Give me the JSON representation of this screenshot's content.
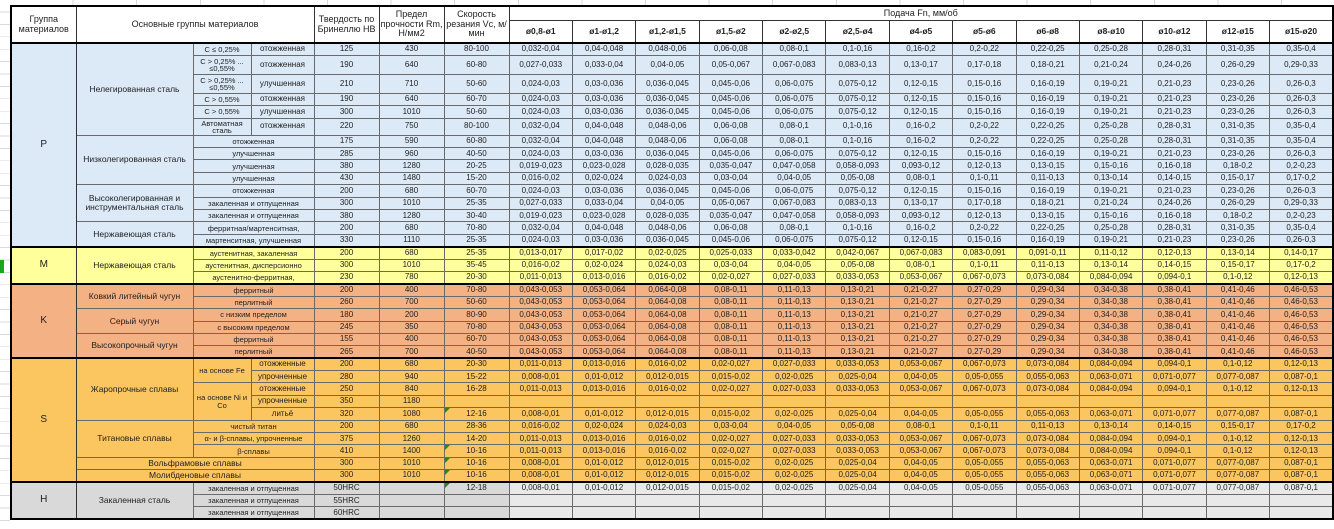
{
  "header": {
    "group": "Группа материалов",
    "main_groups": "Основные группы материалов",
    "hardness": "Твердость по Бринеллю HB",
    "strength": "Предел прочности Rm, Н/мм2",
    "speed": "Скорость резания Vc, м/мин",
    "feed": "Подача Fn, мм/об",
    "feed_columns": [
      "ø0,8-ø1",
      "ø1-ø1,2",
      "ø1,2-ø1,5",
      "ø1,5-ø2",
      "ø2-ø2,5",
      "ø2,5-ø4",
      "ø4-ø5",
      "ø5-ø6",
      "ø6-ø8",
      "ø8-ø10",
      "ø10-ø12",
      "ø12-ø15",
      "ø15-ø20"
    ]
  },
  "colors": {
    "P": "#dce9f7",
    "M": "#ffff9c",
    "K": "#f4b183",
    "S": "#fbc55f",
    "H": "#d9d9d9",
    "comment_marker": "#1e8c1e"
  },
  "feed_profiles": {
    "F0": [
      "",
      "",
      "",
      "",
      "",
      "",
      "",
      "",
      "",
      "",
      "",
      "",
      ""
    ],
    "F1": [
      "0,032-0,04",
      "0,04-0,048",
      "0,048-0,06",
      "0,06-0,08",
      "0,08-0,1",
      "0,1-0,16",
      "0,16-0,2",
      "0,2-0,22",
      "0,22-0,25",
      "0,25-0,28",
      "0,28-0,31",
      "0,31-0,35",
      "0,35-0,4"
    ],
    "F2": [
      "0,027-0,033",
      "0,033-0,04",
      "0,04-0,05",
      "0,05-0,067",
      "0,067-0,083",
      "0,083-0,13",
      "0,13-0,17",
      "0,17-0,18",
      "0,18-0,21",
      "0,21-0,24",
      "0,24-0,26",
      "0,26-0,29",
      "0,29-0,33"
    ],
    "F3": [
      "0,024-0,03",
      "0,03-0,036",
      "0,036-0,045",
      "0,045-0,06",
      "0,06-0,075",
      "0,075-0,12",
      "0,12-0,15",
      "0,15-0,16",
      "0,16-0,19",
      "0,19-0,21",
      "0,21-0,23",
      "0,23-0,26",
      "0,26-0,3"
    ],
    "F4": [
      "0,019-0,023",
      "0,023-0,028",
      "0,028-0,035",
      "0,035-0,047",
      "0,047-0,058",
      "0,058-0,093",
      "0,093-0,12",
      "0,12-0,13",
      "0,13-0,15",
      "0,15-0,16",
      "0,16-0,18",
      "0,18-0,2",
      "0,2-0,23"
    ],
    "F5": [
      "0,016-0,02",
      "0,02-0,024",
      "0,024-0,03",
      "0,03-0,04",
      "0,04-0,05",
      "0,05-0,08",
      "0,08-0,1",
      "0,1-0,11",
      "0,11-0,13",
      "0,13-0,14",
      "0,14-0,15",
      "0,15-0,17",
      "0,17-0,2"
    ],
    "F6": [
      "0,013-0,017",
      "0,017-0,02",
      "0,02-0,025",
      "0,025-0,033",
      "0,033-0,042",
      "0,042-0,067",
      "0,067-0,083",
      "0,083-0,091",
      "0,091-0,11",
      "0,11-0,12",
      "0,12-0,13",
      "0,13-0,14",
      "0,14-0,17"
    ],
    "F7": [
      "0,011-0,013",
      "0,013-0,016",
      "0,016-0,02",
      "0,02-0,027",
      "0,027-0,033",
      "0,033-0,053",
      "0,053-0,067",
      "0,067-0,073",
      "0,073-0,084",
      "0,084-0,094",
      "0,094-0,1",
      "0,1-0,12",
      "0,12-0,13"
    ],
    "F8": [
      "0,043-0,053",
      "0,053-0,064",
      "0,064-0,08",
      "0,08-0,11",
      "0,11-0,13",
      "0,13-0,21",
      "0,21-0,27",
      "0,27-0,29",
      "0,29-0,34",
      "0,34-0,38",
      "0,38-0,41",
      "0,41-0,46",
      "0,46-0,53"
    ],
    "F9": [
      "0,008-0,01",
      "0,01-0,012",
      "0,012-0,015",
      "0,015-0,02",
      "0,02-0,025",
      "0,025-0,04",
      "0,04-0,05",
      "0,05-0,055",
      "0,055-0,063",
      "0,063-0,071",
      "0,071-0,077",
      "0,077-0,087",
      "0,087-0,1"
    ]
  },
  "sections": [
    {
      "group": "P",
      "rows": [
        {
          "cells": [
            {
              "t": "Нелегированная сталь",
              "rs": 6,
              "c": "fam"
            },
            {
              "t": "C ≤ 0,25%",
              "c": "s1"
            },
            {
              "t": "отожженная",
              "c": "s2"
            },
            {
              "t": "125"
            },
            {
              "t": "430"
            },
            {
              "t": "80-100"
            }
          ],
          "feed": "F1"
        },
        {
          "cells": [
            {
              "t": "C > 0,25% ... ≤0,55%",
              "c": "s1"
            },
            {
              "t": "отожженная",
              "c": "s2"
            },
            {
              "t": "190"
            },
            {
              "t": "640"
            },
            {
              "t": "60-80"
            }
          ],
          "feed": "F2"
        },
        {
          "cells": [
            {
              "t": "C > 0,25% ... ≤0,55%",
              "c": "s1"
            },
            {
              "t": "улучшенная",
              "c": "s2"
            },
            {
              "t": "210"
            },
            {
              "t": "710"
            },
            {
              "t": "50-60"
            }
          ],
          "feed": "F3"
        },
        {
          "cells": [
            {
              "t": "C > 0,55%",
              "c": "s1"
            },
            {
              "t": "отожженная",
              "c": "s2"
            },
            {
              "t": "190"
            },
            {
              "t": "640"
            },
            {
              "t": "60-70"
            }
          ],
          "feed": "F3"
        },
        {
          "cells": [
            {
              "t": "C > 0,55%",
              "c": "s1"
            },
            {
              "t": "улучшенная",
              "c": "s2"
            },
            {
              "t": "300"
            },
            {
              "t": "1010"
            },
            {
              "t": "50-60"
            }
          ],
          "feed": "F3"
        },
        {
          "cells": [
            {
              "t": "Автоматная сталь",
              "c": "s1"
            },
            {
              "t": "отожженная",
              "c": "s2"
            },
            {
              "t": "220"
            },
            {
              "t": "750"
            },
            {
              "t": "80-100"
            }
          ],
          "feed": "F1"
        },
        {
          "cells": [
            {
              "t": "Низколегированная сталь",
              "rs": 4,
              "c": "fam"
            },
            {
              "t": "отожженная",
              "cs": 2,
              "c": "s1"
            },
            {
              "t": "175"
            },
            {
              "t": "590"
            },
            {
              "t": "60-80"
            }
          ],
          "feed": "F1"
        },
        {
          "cells": [
            {
              "t": "улучшенная",
              "cs": 2,
              "c": "s1"
            },
            {
              "t": "285"
            },
            {
              "t": "960"
            },
            {
              "t": "40-50"
            }
          ],
          "feed": "F3"
        },
        {
          "cells": [
            {
              "t": "улучшенная",
              "cs": 2,
              "c": "s1"
            },
            {
              "t": "380"
            },
            {
              "t": "1280"
            },
            {
              "t": "20-25"
            }
          ],
          "feed": "F4"
        },
        {
          "cells": [
            {
              "t": "улучшенная",
              "cs": 2,
              "c": "s1"
            },
            {
              "t": "430"
            },
            {
              "t": "1480"
            },
            {
              "t": "15-20"
            }
          ],
          "feed": "F5"
        },
        {
          "cells": [
            {
              "t": "Высоколегированная и инструментальная сталь",
              "rs": 3,
              "c": "fam"
            },
            {
              "t": "отожженная",
              "cs": 2,
              "c": "s1"
            },
            {
              "t": "200"
            },
            {
              "t": "680"
            },
            {
              "t": "60-70"
            }
          ],
          "feed": "F3"
        },
        {
          "cells": [
            {
              "t": "закаленная и отпущенная",
              "cs": 2,
              "c": "s1"
            },
            {
              "t": "300"
            },
            {
              "t": "1010"
            },
            {
              "t": "25-35"
            }
          ],
          "feed": "F2"
        },
        {
          "cells": [
            {
              "t": "закаленная и отпущенная",
              "cs": 2,
              "c": "s1"
            },
            {
              "t": "380"
            },
            {
              "t": "1280"
            },
            {
              "t": "30-40"
            }
          ],
          "feed": "F4"
        },
        {
          "cells": [
            {
              "t": "Нержавеющая сталь",
              "rs": 2,
              "c": "fam"
            },
            {
              "t": "ферритная/мартенситная,",
              "cs": 2,
              "c": "s1"
            },
            {
              "t": "200"
            },
            {
              "t": "680"
            },
            {
              "t": "70-80"
            }
          ],
          "feed": "F1"
        },
        {
          "cells": [
            {
              "t": "мартенситная, улучшенная",
              "cs": 2,
              "c": "s1"
            },
            {
              "t": "330"
            },
            {
              "t": "1110"
            },
            {
              "t": "25-35"
            }
          ],
          "feed": "F3"
        }
      ]
    },
    {
      "group": "M",
      "rows": [
        {
          "cells": [
            {
              "t": "Нержавеющая сталь",
              "rs": 3,
              "c": "fam"
            },
            {
              "t": "аустенитная, закаленная",
              "cs": 2,
              "c": "s1"
            },
            {
              "t": "200"
            },
            {
              "t": "680"
            },
            {
              "t": "25-35"
            }
          ],
          "feed": "F6"
        },
        {
          "cells": [
            {
              "t": "аустенитная, дисперсионно",
              "cs": 2,
              "c": "s1"
            },
            {
              "t": "300"
            },
            {
              "t": "1010"
            },
            {
              "t": "35-45"
            }
          ],
          "feed": "F5"
        },
        {
          "cells": [
            {
              "t": "аустенитно-ферритная,",
              "cs": 2,
              "c": "s1"
            },
            {
              "t": "230"
            },
            {
              "t": "780"
            },
            {
              "t": "20-30"
            }
          ],
          "feed": "F7"
        }
      ]
    },
    {
      "group": "K",
      "rows": [
        {
          "cells": [
            {
              "t": "Ковкий литейный чугун",
              "rs": 2,
              "c": "fam"
            },
            {
              "t": "ферритный",
              "cs": 2,
              "c": "s1"
            },
            {
              "t": "200"
            },
            {
              "t": "400"
            },
            {
              "t": "70-80"
            }
          ],
          "feed": "F8"
        },
        {
          "cells": [
            {
              "t": "перлитный",
              "cs": 2,
              "c": "s1"
            },
            {
              "t": "260"
            },
            {
              "t": "700"
            },
            {
              "t": "50-60"
            }
          ],
          "feed": "F8"
        },
        {
          "cells": [
            {
              "t": "Серый чугун",
              "rs": 2,
              "c": "fam"
            },
            {
              "t": "с низким пределом",
              "cs": 2,
              "c": "s1"
            },
            {
              "t": "180"
            },
            {
              "t": "200"
            },
            {
              "t": "80-90"
            }
          ],
          "feed": "F8"
        },
        {
          "cells": [
            {
              "t": "с высоким пределом",
              "cs": 2,
              "c": "s1"
            },
            {
              "t": "245"
            },
            {
              "t": "350"
            },
            {
              "t": "70-80"
            }
          ],
          "feed": "F8"
        },
        {
          "cells": [
            {
              "t": "Высокопрочный чугун",
              "rs": 2,
              "c": "fam"
            },
            {
              "t": "ферритный",
              "cs": 2,
              "c": "s1"
            },
            {
              "t": "155"
            },
            {
              "t": "400"
            },
            {
              "t": "60-70"
            }
          ],
          "feed": "F8"
        },
        {
          "cells": [
            {
              "t": "перлитный",
              "cs": 2,
              "c": "s1"
            },
            {
              "t": "265"
            },
            {
              "t": "700"
            },
            {
              "t": "40-50"
            }
          ],
          "feed": "F8"
        }
      ]
    },
    {
      "group": "S",
      "rows": [
        {
          "cells": [
            {
              "t": "Жаропрочные сплавы",
              "rs": 5,
              "c": "fam"
            },
            {
              "t": "на основе Fe",
              "rs": 2,
              "c": "s1"
            },
            {
              "t": "отожженные",
              "c": "s2"
            },
            {
              "t": "200"
            },
            {
              "t": "680"
            },
            {
              "t": "20-30"
            }
          ],
          "feed": "F7"
        },
        {
          "cells": [
            {
              "t": "упрочненные",
              "c": "s2"
            },
            {
              "t": "280"
            },
            {
              "t": "940"
            },
            {
              "t": "15-22"
            }
          ],
          "feed": "F9"
        },
        {
          "cells": [
            {
              "t": "на основе Ni и Co",
              "rs": 3,
              "c": "s1"
            },
            {
              "t": "отожженные",
              "c": "s2"
            },
            {
              "t": "250"
            },
            {
              "t": "840"
            },
            {
              "t": "16-28"
            }
          ],
          "feed": "F7"
        },
        {
          "cells": [
            {
              "t": "упрочненные",
              "c": "s2"
            },
            {
              "t": "350"
            },
            {
              "t": "1180"
            },
            {
              "t": ""
            }
          ],
          "feed": "F0"
        },
        {
          "cells": [
            {
              "t": "литьё",
              "c": "s2"
            },
            {
              "t": "320"
            },
            {
              "t": "1080"
            },
            {
              "t": "12-16",
              "mark": true
            }
          ],
          "feed": "F9"
        },
        {
          "cells": [
            {
              "t": "Титановые сплавы",
              "rs": 3,
              "c": "fam"
            },
            {
              "t": "чистый титан",
              "cs": 2,
              "c": "s1"
            },
            {
              "t": "200"
            },
            {
              "t": "680"
            },
            {
              "t": "28-36"
            }
          ],
          "feed": "F5"
        },
        {
          "cells": [
            {
              "t": "α- и β-сплавы, упрочненные",
              "cs": 2,
              "c": "s1"
            },
            {
              "t": "375"
            },
            {
              "t": "1260"
            },
            {
              "t": "14-20"
            }
          ],
          "feed": "F7"
        },
        {
          "cells": [
            {
              "t": "β-сплавы",
              "cs": 2,
              "c": "s1"
            },
            {
              "t": "410"
            },
            {
              "t": "1400"
            },
            {
              "t": "10-16",
              "mark": true
            }
          ],
          "feed": "F7"
        },
        {
          "cells": [
            {
              "t": "Вольфрамовые сплавы",
              "cs": 3,
              "c": "fam"
            },
            {
              "t": "300"
            },
            {
              "t": "1010"
            },
            {
              "t": "10-16",
              "mark": true
            }
          ],
          "feed": "F9"
        },
        {
          "cells": [
            {
              "t": "Молибденовые сплавы",
              "cs": 3,
              "c": "fam"
            },
            {
              "t": "300"
            },
            {
              "t": "1010"
            },
            {
              "t": "10-16",
              "mark": true
            }
          ],
          "feed": "F9"
        }
      ]
    },
    {
      "group": "H",
      "rows": [
        {
          "cells": [
            {
              "t": "Закаленная сталь",
              "rs": 3,
              "c": "fam"
            },
            {
              "t": "закаленная и отпущенная",
              "cs": 2,
              "c": "s1"
            },
            {
              "t": "50HRC",
              "c": "lab"
            },
            {
              "t": "",
              "c": "lab"
            },
            {
              "t": "12-18",
              "c": "lab",
              "mark": true
            }
          ],
          "feed": "F9"
        },
        {
          "cells": [
            {
              "t": "закаленная и отпущенная",
              "cs": 2,
              "c": "s1"
            },
            {
              "t": "55HRC",
              "c": "lab"
            },
            {
              "t": "",
              "c": "lab"
            },
            {
              "t": "",
              "c": "lab"
            }
          ],
          "feed": "F0"
        },
        {
          "cells": [
            {
              "t": "закаленная и отпущенная",
              "cs": 2,
              "c": "s1"
            },
            {
              "t": "60HRC",
              "c": "lab"
            },
            {
              "t": "",
              "c": "lab"
            },
            {
              "t": "",
              "c": "lab"
            }
          ],
          "feed": "F0"
        }
      ]
    }
  ]
}
